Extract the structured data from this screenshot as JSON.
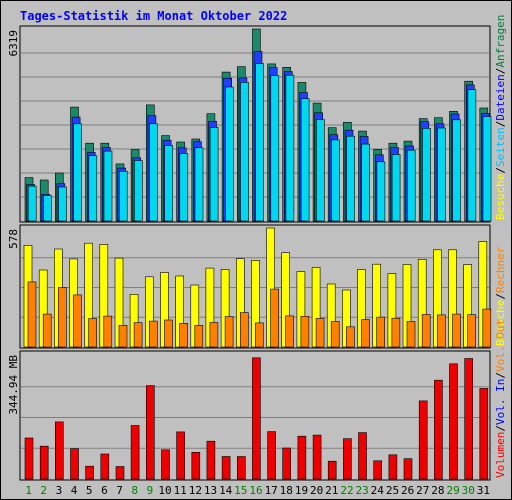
{
  "chart_data": {
    "type": "bar",
    "title": "Tages-Statistik im Monat Oktober 2022",
    "x": [
      "1",
      "2",
      "3",
      "4",
      "5",
      "6",
      "7",
      "8",
      "9",
      "10",
      "11",
      "12",
      "13",
      "14",
      "15",
      "16",
      "17",
      "18",
      "19",
      "20",
      "21",
      "22",
      "23",
      "24",
      "25",
      "26",
      "27",
      "28",
      "29",
      "30",
      "31"
    ],
    "weekend_days": [
      "1",
      "2",
      "8",
      "9",
      "15",
      "16",
      "22",
      "23",
      "29",
      "30"
    ],
    "panels": [
      {
        "id": "top",
        "ymax_label": "6319",
        "ymax": 6319,
        "side_legend": [
          {
            "text": "Anfragen",
            "color": "#008040"
          },
          {
            "text": "/",
            "color": "#000000"
          },
          {
            "text": "Dateien",
            "color": "#0000ff"
          },
          {
            "text": "/",
            "color": "#000000"
          },
          {
            "text": "Seiten",
            "color": "#00c0ff"
          },
          {
            "text": "/",
            "color": "#000000"
          },
          {
            "text": "Besuche",
            "color": "#ffff00"
          }
        ],
        "series": [
          {
            "name": "Anfragen",
            "color": "#1a8a6a",
            "values": [
              1430,
              1350,
              1580,
              3750,
              2560,
              2560,
              1880,
              2350,
              3820,
              2810,
              2600,
              2700,
              3530,
              4900,
              5080,
              6319,
              5170,
              5060,
              4560,
              3880,
              3070,
              3250,
              2960,
              2360,
              2560,
              2630,
              3370,
              3400,
              3610,
              4600,
              3720
            ]
          },
          {
            "name": "Dateien",
            "color": "#2040ff",
            "values": [
              1200,
              880,
              1230,
              3420,
              2260,
              2420,
              1740,
              2080,
              3470,
              2660,
              2410,
              2610,
              3280,
              4700,
              4710,
              5580,
              5050,
              4920,
              4230,
              3560,
              2840,
              2990,
              2780,
              2180,
              2420,
              2470,
              3270,
              3200,
              3520,
              4480,
              3540
            ]
          },
          {
            "name": "Seiten",
            "color": "#00d8f0",
            "values": [
              1150,
              840,
              1120,
              3200,
              2150,
              2300,
              1640,
              1990,
              3200,
              2490,
              2220,
              2410,
              3080,
              4410,
              4560,
              5180,
              4790,
              4800,
              4030,
              3340,
              2670,
              2790,
              2530,
              1950,
              2190,
              2330,
              3050,
              3060,
              3330,
              4320,
              3440
            ]
          }
        ]
      },
      {
        "id": "middle",
        "ymax_label": "578",
        "ymax": 578,
        "side_legend": [
          {
            "text": "Rechner",
            "color": "#ff8000"
          },
          {
            "text": "/",
            "color": "#000000"
          },
          {
            "text": "Besuche",
            "color": "#ffff00"
          }
        ],
        "series": [
          {
            "name": "Besuche",
            "color": "#ffff00",
            "values": [
              494,
              374,
              476,
              428,
              504,
              498,
              432,
              256,
              341,
              362,
              345,
              301,
              383,
              377,
              429,
              421,
              578,
              458,
              366,
              386,
              306,
              277,
              376,
              402,
              357,
              401,
              426,
              472,
              472,
              400,
              512
            ]
          },
          {
            "name": "Rechner",
            "color": "#ff8000",
            "values": [
              316,
              160,
              289,
              253,
              138,
              150,
              105,
              118,
              126,
              131,
              115,
              105,
              119,
              148,
              167,
              117,
              281,
              151,
              149,
              139,
              124,
              98,
              133,
              145,
              140,
              124,
              158,
              156,
              160,
              157,
              184
            ]
          }
        ]
      },
      {
        "id": "bottom",
        "ymax_label": "344.94 MB",
        "ymax": 344.94,
        "side_legend": [
          {
            "text": "Vol. Out",
            "color": "#ff8000"
          },
          {
            "text": "/",
            "color": "#000000"
          },
          {
            "text": "Vol. In",
            "color": "#0000ff"
          },
          {
            "text": "/",
            "color": "#000000"
          },
          {
            "text": "Volumen",
            "color": "#ff0000"
          }
        ],
        "series": [
          {
            "name": "Volumen",
            "color": "#ee0000",
            "values": [
              115,
              92,
              160,
              85,
              36,
              70,
              35,
              150,
              262,
              82,
              132,
              75,
              106,
              63,
              63,
              340,
              133,
              87,
              120,
              123,
              50,
              113,
              130,
              51,
              68,
              57,
              219,
              277,
              323,
              338,
              254
            ]
          }
        ]
      }
    ]
  }
}
